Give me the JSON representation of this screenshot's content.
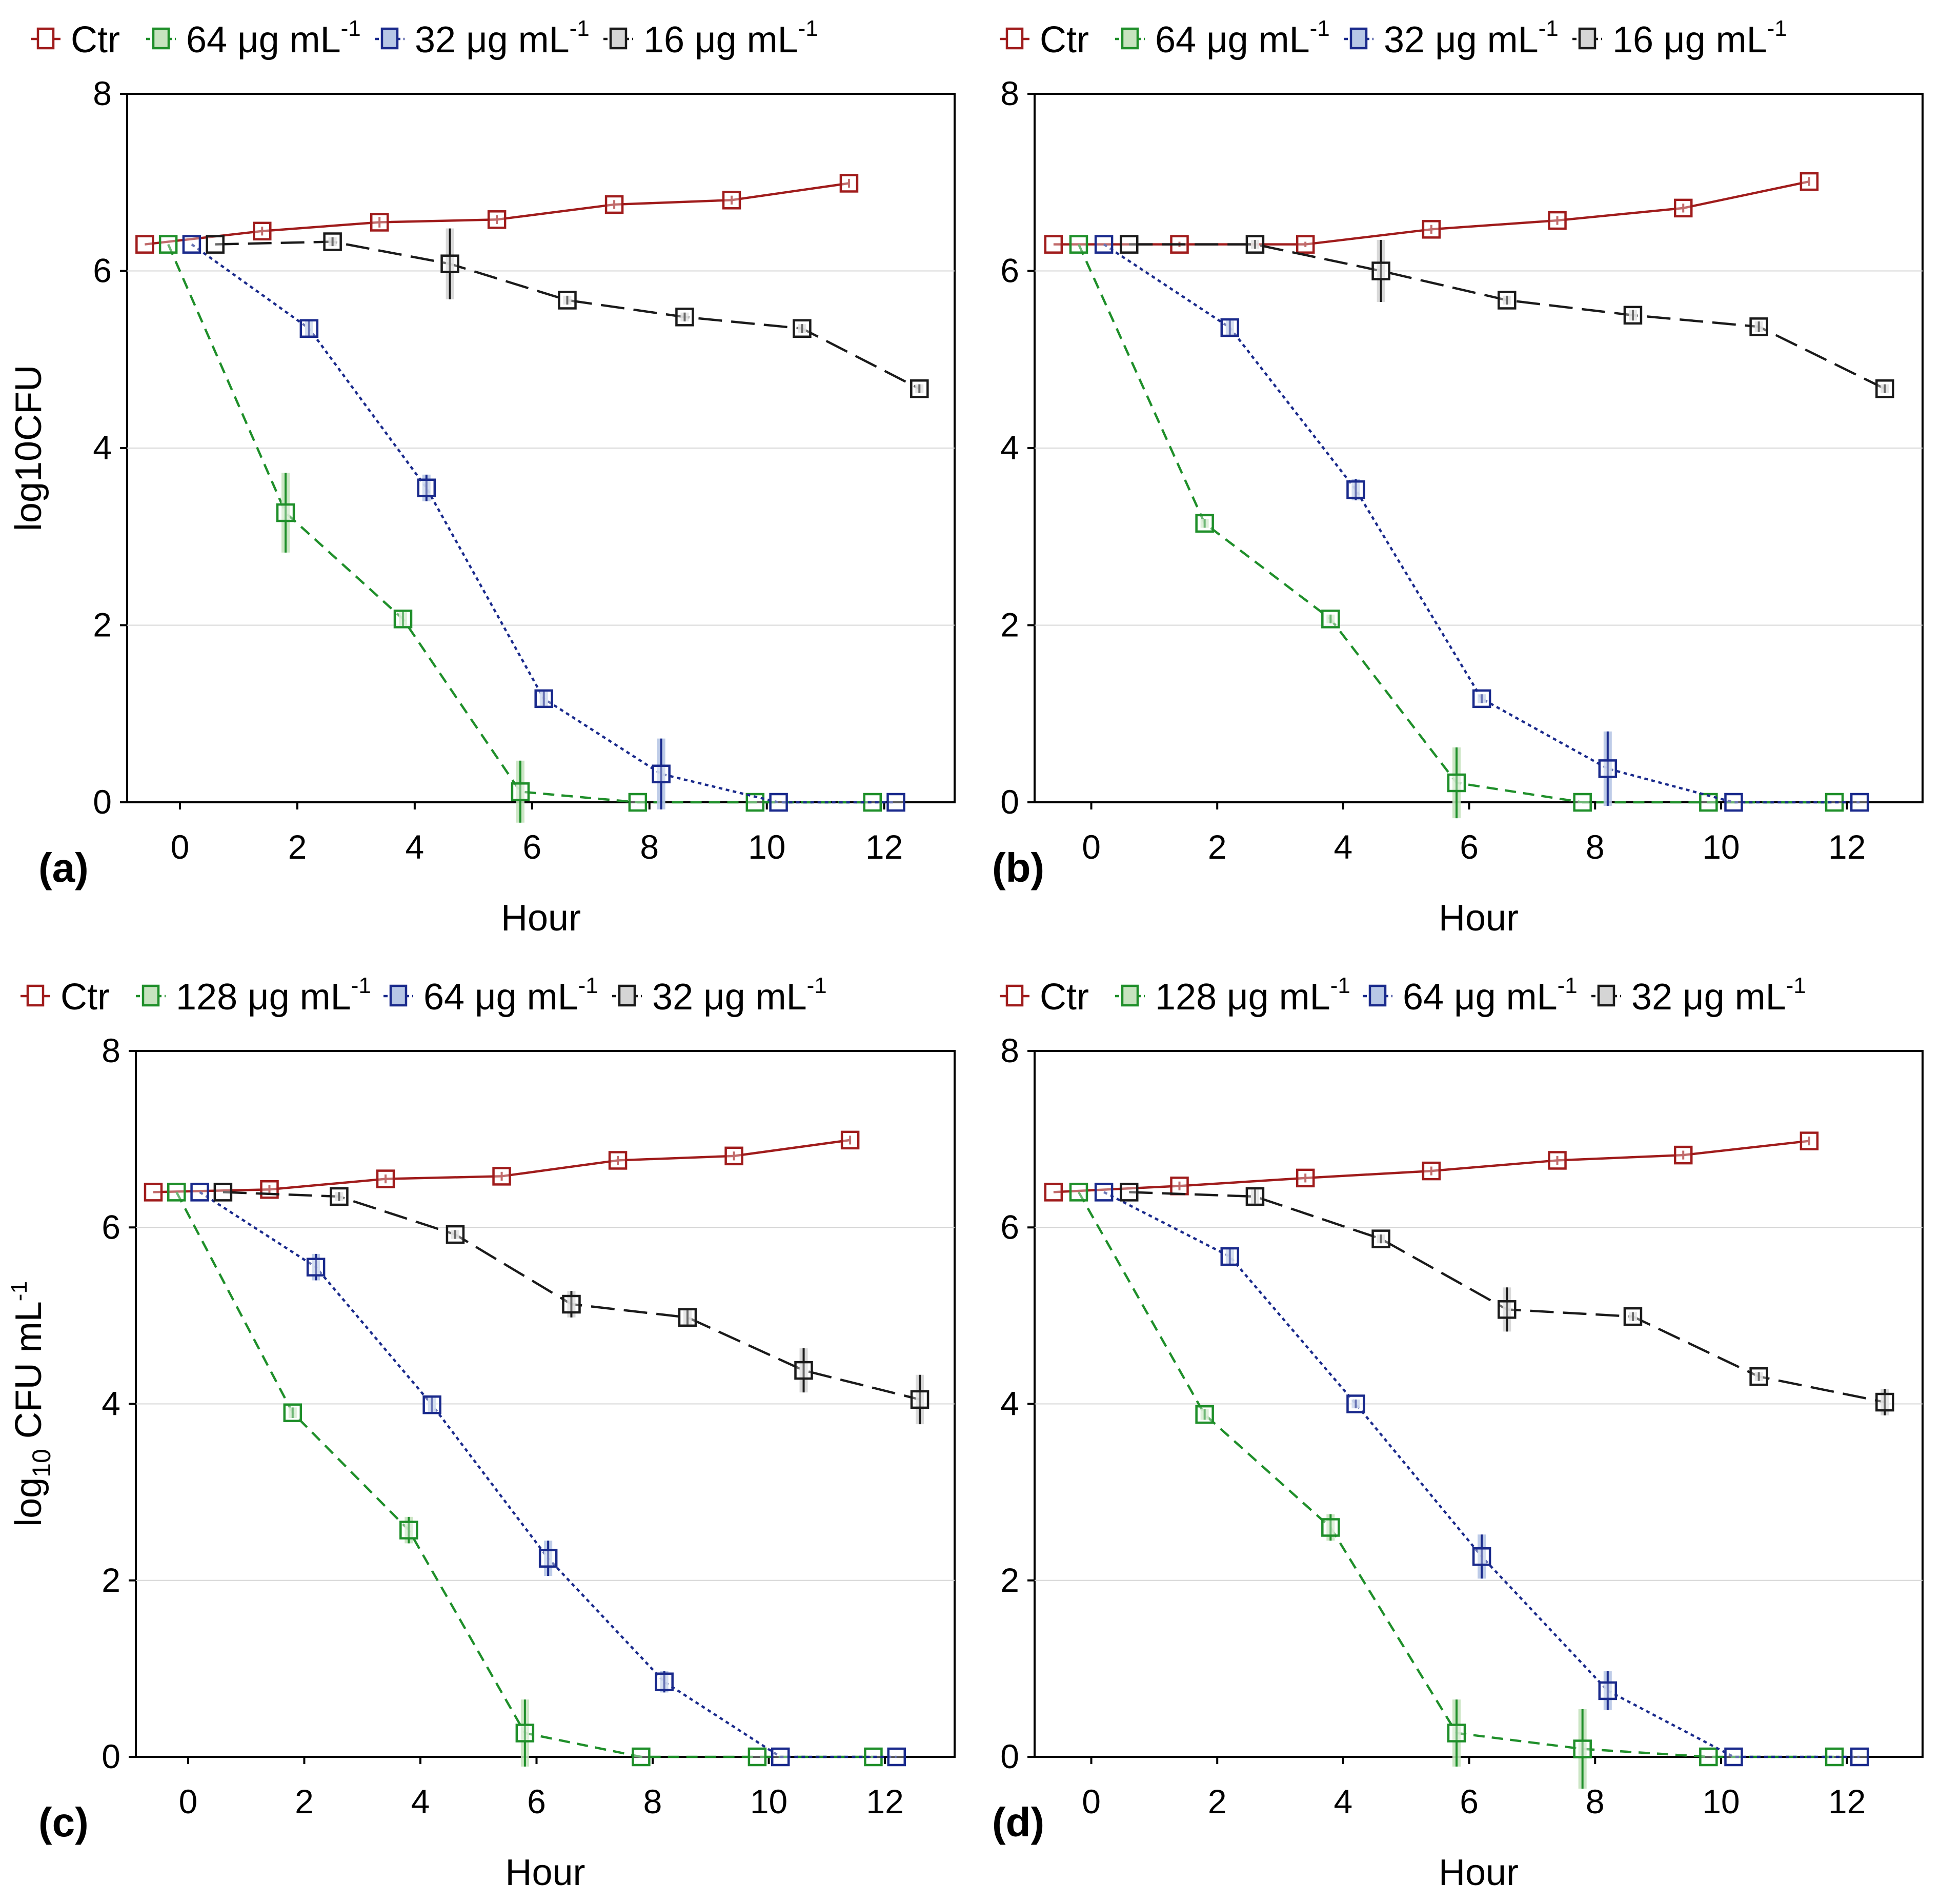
{
  "chart_data": [
    {
      "type": "line",
      "panel_label": "(a)",
      "xlabel": "Hour",
      "ylabel": "log10CFU",
      "ylabel_main": "log10CFU",
      "ylabel_sub": "",
      "ylabel_rest": "",
      "ylim": [
        0,
        8
      ],
      "yticks": [
        "0",
        "2",
        "4",
        "6",
        "8"
      ],
      "xticks": [
        "0",
        "2",
        "4",
        "6",
        "8",
        "10",
        "12"
      ],
      "legend_position": "top",
      "series": [
        {
          "name": "Ctr",
          "legend_text": "Ctr",
          "legend_sup": "",
          "color": "#a01c1c",
          "fill": "none",
          "dash": "solid",
          "x": [
            -0.6,
            1.4,
            3.4,
            5.4,
            7.4,
            9.4,
            11.4
          ],
          "y": [
            6.3,
            6.45,
            6.55,
            6.58,
            6.75,
            6.8,
            6.99
          ],
          "err": [
            0,
            0.05,
            0.06,
            0.05,
            0.05,
            0.05,
            0.05
          ]
        },
        {
          "name": "64 µg mL-1",
          "legend_text": "64 μg mL",
          "legend_sup": "-1",
          "color": "#1f8f2a",
          "fill": "#c7e3bf",
          "dash": "short",
          "x": [
            -0.2,
            1.8,
            3.8,
            5.8,
            7.8,
            9.8,
            11.8
          ],
          "y": [
            6.3,
            3.27,
            2.07,
            0.12,
            0.0,
            0.0,
            0.0
          ],
          "err": [
            0,
            0.45,
            0.08,
            0.35,
            0,
            0,
            0
          ]
        },
        {
          "name": "32 µg mL-1",
          "legend_text": "32 μg mL",
          "legend_sup": "-1",
          "color": "#1a2a8c",
          "fill": "#b7c7e6",
          "dash": "dot",
          "x": [
            0.2,
            2.2,
            4.2,
            6.2,
            8.2,
            10.2,
            12.2
          ],
          "y": [
            6.3,
            5.35,
            3.55,
            1.17,
            0.32,
            0.0,
            0.0
          ],
          "err": [
            0,
            0.08,
            0.15,
            0.08,
            0.4,
            0,
            0
          ]
        },
        {
          "name": "16 µg mL-1",
          "legend_text": "16 μg mL",
          "legend_sup": "-1",
          "color": "#1a1a1a",
          "fill": "#d5d5d5",
          "dash": "long",
          "x": [
            0.6,
            2.6,
            4.6,
            6.6,
            8.6,
            10.6,
            12.6
          ],
          "y": [
            6.3,
            6.33,
            6.08,
            5.67,
            5.48,
            5.35,
            4.67
          ],
          "err": [
            0,
            0.05,
            0.4,
            0.05,
            0.05,
            0.05,
            0.05
          ]
        }
      ]
    },
    {
      "type": "line",
      "panel_label": "(b)",
      "xlabel": "Hour",
      "ylabel": "",
      "ylabel_main": "",
      "ylabel_sub": "",
      "ylabel_rest": "",
      "ylim": [
        0,
        8
      ],
      "yticks": [
        "0",
        "2",
        "4",
        "6",
        "8"
      ],
      "xticks": [
        "0",
        "2",
        "4",
        "6",
        "8",
        "10",
        "12"
      ],
      "legend_position": "top",
      "series": [
        {
          "name": "Ctr",
          "legend_text": "Ctr",
          "legend_sup": "",
          "color": "#a01c1c",
          "fill": "none",
          "dash": "solid",
          "x": [
            -0.6,
            1.4,
            3.4,
            5.4,
            7.4,
            9.4,
            11.4
          ],
          "y": [
            6.3,
            6.3,
            6.3,
            6.47,
            6.57,
            6.71,
            7.01
          ],
          "err": [
            0,
            0.03,
            0.03,
            0.05,
            0.05,
            0.05,
            0.05
          ]
        },
        {
          "name": "64 µg mL-1",
          "legend_text": "64 μg mL",
          "legend_sup": "-1",
          "color": "#1f8f2a",
          "fill": "#c7e3bf",
          "dash": "short",
          "x": [
            -0.2,
            1.8,
            3.8,
            5.8,
            7.8,
            9.8,
            11.8
          ],
          "y": [
            6.3,
            3.15,
            2.07,
            0.22,
            0.0,
            0.0,
            0.0
          ],
          "err": [
            0,
            0.05,
            0.05,
            0.4,
            0,
            0,
            0
          ]
        },
        {
          "name": "32 µg mL-1",
          "legend_text": "32 μg mL",
          "legend_sup": "-1",
          "color": "#1a2a8c",
          "fill": "#b7c7e6",
          "dash": "dot",
          "x": [
            0.2,
            2.2,
            4.2,
            6.2,
            8.2,
            10.2,
            12.2
          ],
          "y": [
            6.3,
            5.36,
            3.53,
            1.17,
            0.38,
            0.0,
            0.0
          ],
          "err": [
            0,
            0.08,
            0.12,
            0.05,
            0.42,
            0,
            0
          ]
        },
        {
          "name": "16 µg mL-1",
          "legend_text": "16 μg mL",
          "legend_sup": "-1",
          "color": "#1a1a1a",
          "fill": "#d5d5d5",
          "dash": "long",
          "x": [
            0.6,
            2.6,
            4.6,
            6.6,
            8.6,
            10.6,
            12.6
          ],
          "y": [
            6.3,
            6.3,
            6.0,
            5.67,
            5.5,
            5.37,
            4.67
          ],
          "err": [
            0,
            0.05,
            0.35,
            0.05,
            0.06,
            0.06,
            0.05
          ]
        }
      ]
    },
    {
      "type": "line",
      "panel_label": "(c)",
      "xlabel": "Hour",
      "ylabel": "log10 CFU mL-1",
      "ylabel_main": "log",
      "ylabel_sub": "10",
      "ylabel_rest": " CFU mL",
      "ylabel_sup": "-1",
      "ylim": [
        0,
        8
      ],
      "yticks": [
        "0",
        "2",
        "4",
        "6",
        "8"
      ],
      "xticks": [
        "0",
        "2",
        "4",
        "6",
        "8",
        "10",
        "12"
      ],
      "legend_position": "top",
      "series": [
        {
          "name": "Ctr",
          "legend_text": "Ctr",
          "legend_sup": "",
          "color": "#a01c1c",
          "fill": "none",
          "dash": "solid",
          "x": [
            -0.6,
            1.4,
            3.4,
            5.4,
            7.4,
            9.4,
            11.4
          ],
          "y": [
            6.4,
            6.43,
            6.55,
            6.58,
            6.76,
            6.81,
            6.99
          ],
          "err": [
            0,
            0.05,
            0.05,
            0.05,
            0.05,
            0.05,
            0.05
          ]
        },
        {
          "name": "128 µg mL-1",
          "legend_text": "128 μg mL",
          "legend_sup": "-1",
          "color": "#1f8f2a",
          "fill": "#c7e3bf",
          "dash": "short",
          "x": [
            -0.2,
            1.8,
            3.8,
            5.8,
            7.8,
            9.8,
            11.8
          ],
          "y": [
            6.4,
            3.9,
            2.57,
            0.27,
            0.0,
            0.0,
            0.0
          ],
          "err": [
            0,
            0.06,
            0.15,
            0.38,
            0,
            0,
            0
          ]
        },
        {
          "name": "64 µg mL-1",
          "legend_text": "64 μg mL",
          "legend_sup": "-1",
          "color": "#1a2a8c",
          "fill": "#b7c7e6",
          "dash": "dot",
          "x": [
            0.2,
            2.2,
            4.2,
            6.2,
            8.2,
            10.2,
            12.2
          ],
          "y": [
            6.4,
            5.55,
            3.99,
            2.25,
            0.85,
            0.0,
            0.0
          ],
          "err": [
            0,
            0.15,
            0.08,
            0.2,
            0.12,
            0,
            0
          ]
        },
        {
          "name": "32 µg mL-1",
          "legend_text": "32 μg mL",
          "legend_sup": "-1",
          "color": "#1a1a1a",
          "fill": "#d5d5d5",
          "dash": "long",
          "x": [
            0.6,
            2.6,
            4.6,
            6.6,
            8.6,
            10.6,
            12.6
          ],
          "y": [
            6.4,
            6.35,
            5.92,
            5.13,
            4.98,
            4.38,
            4.05
          ],
          "err": [
            0,
            0.05,
            0.05,
            0.15,
            0.08,
            0.25,
            0.28
          ]
        }
      ]
    },
    {
      "type": "line",
      "panel_label": "(d)",
      "xlabel": "Hour",
      "ylabel": "",
      "ylabel_main": "",
      "ylabel_sub": "",
      "ylabel_rest": "",
      "ylim": [
        0,
        8
      ],
      "yticks": [
        "0",
        "2",
        "4",
        "6",
        "8"
      ],
      "xticks": [
        "0",
        "2",
        "4",
        "6",
        "8",
        "10",
        "12"
      ],
      "legend_position": "top",
      "series": [
        {
          "name": "Ctr",
          "legend_text": "Ctr",
          "legend_sup": "",
          "color": "#a01c1c",
          "fill": "none",
          "dash": "solid",
          "x": [
            -0.6,
            1.4,
            3.4,
            5.4,
            7.4,
            9.4,
            11.4
          ],
          "y": [
            6.4,
            6.47,
            6.56,
            6.64,
            6.76,
            6.82,
            6.98
          ],
          "err": [
            0,
            0.05,
            0.05,
            0.05,
            0.05,
            0.05,
            0.05
          ]
        },
        {
          "name": "128 µg mL-1",
          "legend_text": "128 μg mL",
          "legend_sup": "-1",
          "color": "#1f8f2a",
          "fill": "#c7e3bf",
          "dash": "short",
          "x": [
            -0.2,
            1.8,
            3.8,
            5.8,
            7.8,
            9.8,
            11.8
          ],
          "y": [
            6.4,
            3.88,
            2.6,
            0.27,
            0.09,
            0.0,
            0.0
          ],
          "err": [
            0,
            0.06,
            0.15,
            0.38,
            0.45,
            0,
            0
          ]
        },
        {
          "name": "64 µg mL-1",
          "legend_text": "64 μg mL",
          "legend_sup": "-1",
          "color": "#1a2a8c",
          "fill": "#b7c7e6",
          "dash": "dot",
          "x": [
            0.2,
            2.2,
            4.2,
            6.2,
            8.2,
            10.2,
            12.2
          ],
          "y": [
            6.4,
            5.67,
            4.0,
            2.27,
            0.75,
            0.0,
            0.0
          ],
          "err": [
            0,
            0.1,
            0.05,
            0.25,
            0.22,
            0,
            0
          ]
        },
        {
          "name": "32 µg mL-1",
          "legend_text": "32 μg mL",
          "legend_sup": "-1",
          "color": "#1a1a1a",
          "fill": "#d5d5d5",
          "dash": "long",
          "x": [
            0.6,
            2.6,
            4.6,
            6.6,
            8.6,
            10.6,
            12.6
          ],
          "y": [
            6.4,
            6.35,
            5.87,
            5.07,
            4.99,
            4.31,
            4.02
          ],
          "err": [
            0,
            0.08,
            0.05,
            0.25,
            0.05,
            0.05,
            0.15
          ]
        }
      ]
    }
  ]
}
